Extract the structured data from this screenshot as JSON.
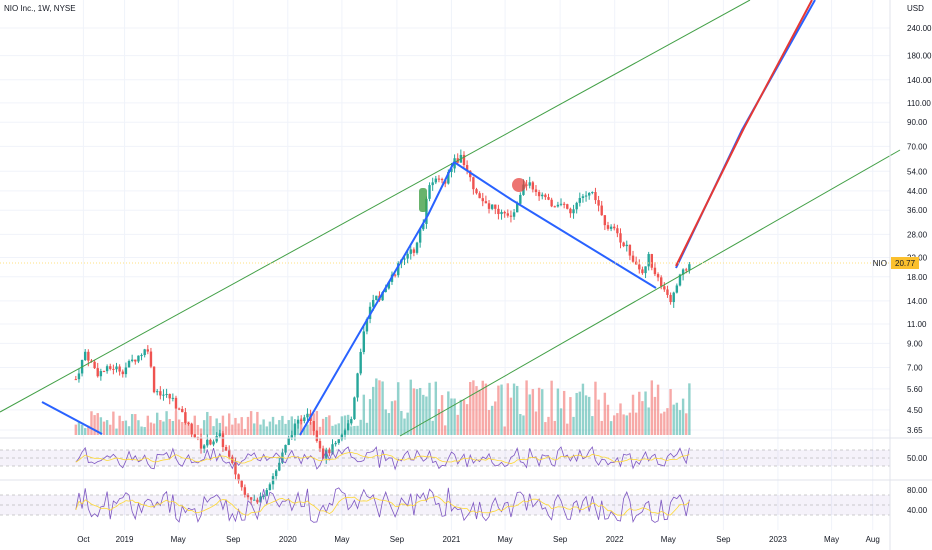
{
  "header": {
    "title": "NIO Inc., 1W, NYSE"
  },
  "chart_data": {
    "type": "candlestick",
    "currency_label": "USD",
    "price_axis_ticks": [
      "240.00",
      "180.00",
      "140.00",
      "110.00",
      "90.00",
      "70.00",
      "54.00",
      "44.00",
      "36.00",
      "28.00",
      "22.00",
      "18.00",
      "14.00",
      "11.00",
      "9.00",
      "7.00",
      "5.60",
      "4.50",
      "3.65"
    ],
    "time_axis_ticks": [
      "Oct",
      "2019",
      "May",
      "Sep",
      "2020",
      "May",
      "Sep",
      "2021",
      "May",
      "Sep",
      "2022",
      "May",
      "Sep",
      "2023",
      "May",
      "Aug"
    ],
    "last_price": {
      "symbol": "NIO",
      "value": "20.77"
    },
    "rsi_top": {
      "ticks": [
        "50.00"
      ],
      "band": [
        30,
        70
      ]
    },
    "rsi_bottom": {
      "ticks": [
        "80.00",
        "40.00"
      ],
      "band": [
        30,
        70
      ]
    },
    "price_path": [
      [
        "2018-09-14",
        6.2
      ],
      [
        "2018-10-05",
        8.2
      ],
      [
        "2018-11-01",
        6.6
      ],
      [
        "2018-12-07",
        7.0
      ],
      [
        "2018-12-28",
        6.8
      ],
      [
        "2019-01-18",
        7.5
      ],
      [
        "2019-02-22",
        8.6
      ],
      [
        "2019-03-08",
        5.6
      ],
      [
        "2019-04-19",
        5.0
      ],
      [
        "2019-05-24",
        3.8
      ],
      [
        "2019-06-21",
        3.1
      ],
      [
        "2019-08-02",
        3.4
      ],
      [
        "2019-09-20",
        2.0
      ],
      [
        "2019-10-25",
        1.7
      ],
      [
        "2019-12-06",
        2.4
      ],
      [
        "2020-01-10",
        3.6
      ],
      [
        "2020-02-14",
        4.5
      ],
      [
        "2020-03-20",
        2.8
      ],
      [
        "2020-04-24",
        3.2
      ],
      [
        "2020-05-22",
        4.1
      ],
      [
        "2020-06-12",
        8.5
      ],
      [
        "2020-07-03",
        13.5
      ],
      [
        "2020-07-31",
        15.0
      ],
      [
        "2020-09-04",
        20.0
      ],
      [
        "2020-10-09",
        24.0
      ],
      [
        "2020-10-30",
        32.0
      ],
      [
        "2020-11-13",
        48.0
      ],
      [
        "2020-11-27",
        52.0
      ],
      [
        "2020-12-18",
        48.0
      ],
      [
        "2021-01-08",
        60.0
      ],
      [
        "2021-01-22",
        62.0
      ],
      [
        "2021-02-12",
        50.0
      ],
      [
        "2021-03-05",
        40.0
      ],
      [
        "2021-03-26",
        38.0
      ],
      [
        "2021-04-23",
        34.0
      ],
      [
        "2021-05-14",
        33.0
      ],
      [
        "2021-06-11",
        48.0
      ],
      [
        "2021-07-02",
        46.0
      ],
      [
        "2021-07-30",
        40.0
      ],
      [
        "2021-08-27",
        38.0
      ],
      [
        "2021-09-24",
        36.0
      ],
      [
        "2021-10-15",
        40.0
      ],
      [
        "2021-11-12",
        43.0
      ],
      [
        "2021-12-10",
        31.0
      ],
      [
        "2022-01-07",
        28.0
      ],
      [
        "2022-02-04",
        23.0
      ],
      [
        "2022-03-04",
        19.0
      ],
      [
        "2022-03-18",
        22.0
      ],
      [
        "2022-04-08",
        18.0
      ],
      [
        "2022-05-06",
        14.0
      ],
      [
        "2022-05-20",
        17.0
      ],
      [
        "2022-06-03",
        19.0
      ],
      [
        "2022-06-17",
        20.77
      ]
    ]
  }
}
